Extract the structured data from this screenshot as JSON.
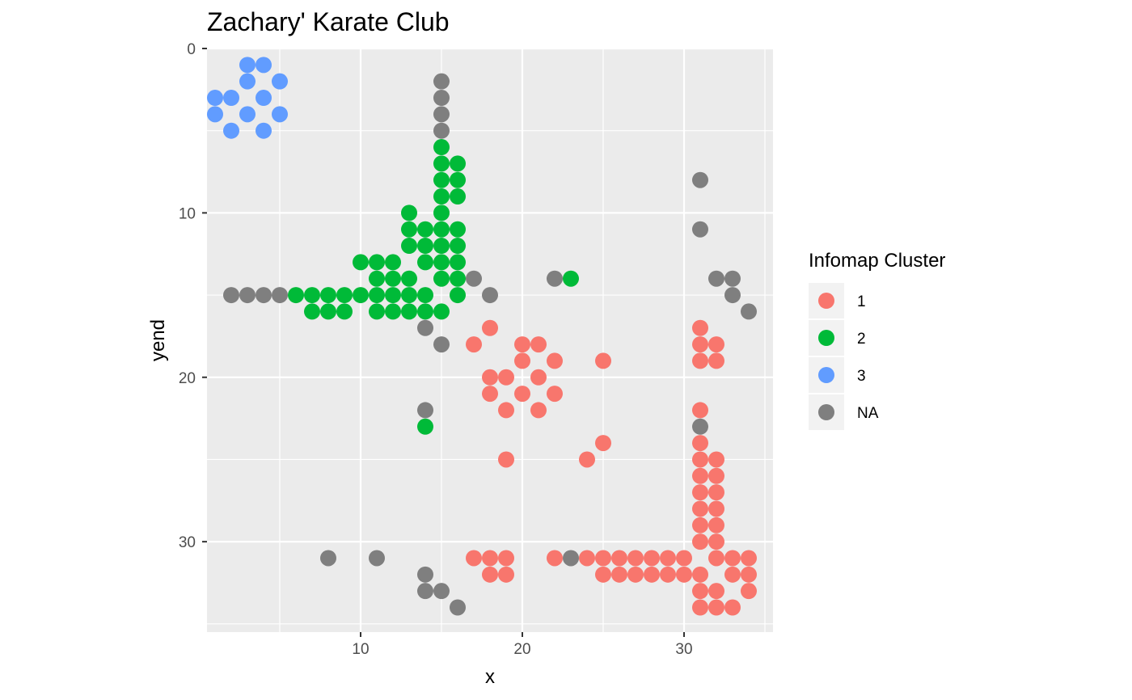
{
  "chart_data": {
    "type": "scatter",
    "title": "Zachary' Karate Club",
    "xlabel": "x",
    "ylabel": "yend",
    "xlim": [
      0.5,
      35.5
    ],
    "ylim": [
      0,
      35.5
    ],
    "y_reversed": true,
    "x_ticks": [
      10,
      20,
      30
    ],
    "y_ticks": [
      0,
      10,
      20,
      30
    ],
    "grid": true,
    "legend": {
      "title": "Infomap Cluster",
      "position": "right"
    },
    "series": [
      {
        "name": "1",
        "color": "#F8766D",
        "points": [
          [
            18,
            17
          ],
          [
            17,
            18
          ],
          [
            20,
            18
          ],
          [
            21,
            18
          ],
          [
            20,
            19
          ],
          [
            22,
            19
          ],
          [
            25,
            19
          ],
          [
            18,
            20
          ],
          [
            19,
            20
          ],
          [
            21,
            20
          ],
          [
            18,
            21
          ],
          [
            20,
            21
          ],
          [
            22,
            21
          ],
          [
            19,
            22
          ],
          [
            21,
            22
          ],
          [
            25,
            24
          ],
          [
            19,
            25
          ],
          [
            24,
            25
          ],
          [
            31,
            17
          ],
          [
            31,
            18
          ],
          [
            32,
            18
          ],
          [
            31,
            19
          ],
          [
            32,
            19
          ],
          [
            31,
            22
          ],
          [
            31,
            24
          ],
          [
            31,
            25
          ],
          [
            32,
            25
          ],
          [
            31,
            26
          ],
          [
            32,
            26
          ],
          [
            31,
            27
          ],
          [
            32,
            27
          ],
          [
            31,
            28
          ],
          [
            32,
            28
          ],
          [
            31,
            29
          ],
          [
            32,
            29
          ],
          [
            31,
            30
          ],
          [
            32,
            30
          ],
          [
            17,
            31
          ],
          [
            18,
            31
          ],
          [
            19,
            31
          ],
          [
            22,
            31
          ],
          [
            24,
            31
          ],
          [
            25,
            31
          ],
          [
            26,
            31
          ],
          [
            27,
            31
          ],
          [
            28,
            31
          ],
          [
            29,
            31
          ],
          [
            30,
            31
          ],
          [
            32,
            31
          ],
          [
            33,
            31
          ],
          [
            34,
            31
          ],
          [
            18,
            32
          ],
          [
            19,
            32
          ],
          [
            25,
            32
          ],
          [
            26,
            32
          ],
          [
            27,
            32
          ],
          [
            28,
            32
          ],
          [
            29,
            32
          ],
          [
            30,
            32
          ],
          [
            31,
            32
          ],
          [
            33,
            32
          ],
          [
            34,
            32
          ],
          [
            31,
            33
          ],
          [
            32,
            33
          ],
          [
            34,
            33
          ],
          [
            31,
            34
          ],
          [
            32,
            34
          ],
          [
            33,
            34
          ]
        ]
      },
      {
        "name": "2",
        "color": "#00BA38",
        "points": [
          [
            15,
            6
          ],
          [
            15,
            7
          ],
          [
            16,
            7
          ],
          [
            15,
            8
          ],
          [
            16,
            8
          ],
          [
            15,
            9
          ],
          [
            16,
            9
          ],
          [
            13,
            10
          ],
          [
            15,
            10
          ],
          [
            13,
            11
          ],
          [
            14,
            11
          ],
          [
            15,
            11
          ],
          [
            16,
            11
          ],
          [
            13,
            12
          ],
          [
            14,
            12
          ],
          [
            15,
            12
          ],
          [
            16,
            12
          ],
          [
            10,
            13
          ],
          [
            11,
            13
          ],
          [
            12,
            13
          ],
          [
            14,
            13
          ],
          [
            15,
            13
          ],
          [
            16,
            13
          ],
          [
            11,
            14
          ],
          [
            12,
            14
          ],
          [
            13,
            14
          ],
          [
            15,
            14
          ],
          [
            16,
            14
          ],
          [
            23,
            14
          ],
          [
            6,
            15
          ],
          [
            7,
            15
          ],
          [
            8,
            15
          ],
          [
            9,
            15
          ],
          [
            10,
            15
          ],
          [
            11,
            15
          ],
          [
            12,
            15
          ],
          [
            13,
            15
          ],
          [
            14,
            15
          ],
          [
            16,
            15
          ],
          [
            7,
            16
          ],
          [
            8,
            16
          ],
          [
            9,
            16
          ],
          [
            11,
            16
          ],
          [
            12,
            16
          ],
          [
            13,
            16
          ],
          [
            14,
            16
          ],
          [
            15,
            16
          ],
          [
            14,
            23
          ]
        ]
      },
      {
        "name": "3",
        "color": "#619CFF",
        "points": [
          [
            3,
            1
          ],
          [
            4,
            1
          ],
          [
            3,
            2
          ],
          [
            5,
            2
          ],
          [
            1,
            3
          ],
          [
            2,
            3
          ],
          [
            4,
            3
          ],
          [
            1,
            4
          ],
          [
            3,
            4
          ],
          [
            5,
            4
          ],
          [
            2,
            5
          ],
          [
            4,
            5
          ]
        ]
      },
      {
        "name": "NA",
        "color": "#7F7F7F",
        "points": [
          [
            15,
            2
          ],
          [
            15,
            3
          ],
          [
            15,
            4
          ],
          [
            15,
            5
          ],
          [
            31,
            8
          ],
          [
            31,
            11
          ],
          [
            17,
            14
          ],
          [
            22,
            14
          ],
          [
            32,
            14
          ],
          [
            33,
            14
          ],
          [
            2,
            15
          ],
          [
            3,
            15
          ],
          [
            4,
            15
          ],
          [
            5,
            15
          ],
          [
            18,
            15
          ],
          [
            33,
            15
          ],
          [
            34,
            16
          ],
          [
            14,
            17
          ],
          [
            15,
            18
          ],
          [
            14,
            22
          ],
          [
            31,
            23
          ],
          [
            8,
            31
          ],
          [
            11,
            31
          ],
          [
            23,
            31
          ],
          [
            14,
            32
          ],
          [
            14,
            33
          ],
          [
            15,
            33
          ],
          [
            16,
            34
          ]
        ]
      }
    ]
  }
}
